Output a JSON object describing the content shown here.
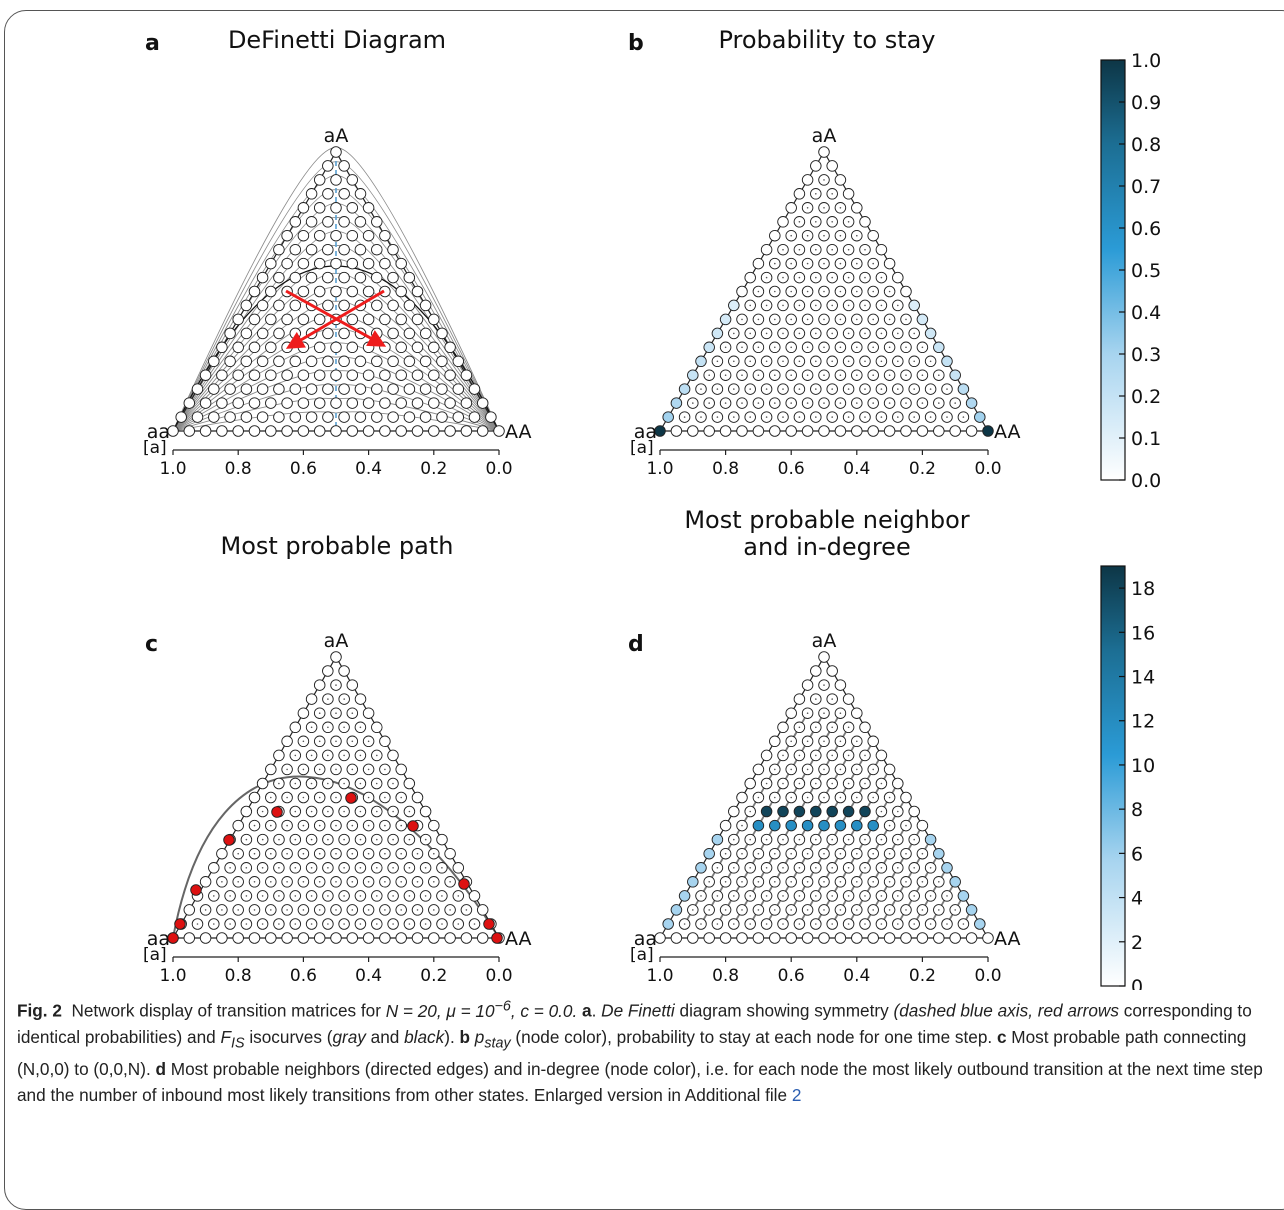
{
  "figure": {
    "panels": [
      {
        "letter": "a",
        "title": "DeFinetti Diagram"
      },
      {
        "letter": "b",
        "title": "Probability to stay"
      },
      {
        "letter": "c",
        "title": "Most probable path"
      },
      {
        "letter": "d",
        "title_line1": "Most probable neighbor",
        "title_line2": "and in-degree"
      }
    ],
    "vertex_labels": {
      "top": "aA",
      "left": "aa",
      "right": "AA",
      "axis_unit": "[a]"
    },
    "x_ticks": [
      "1.0",
      "0.8",
      "0.6",
      "0.4",
      "0.2",
      "0.0"
    ],
    "colorbar_b": {
      "ticks": [
        "1.0",
        "0.9",
        "0.8",
        "0.7",
        "0.6",
        "0.5",
        "0.4",
        "0.3",
        "0.2",
        "0.1",
        "0.0"
      ],
      "range": [
        0,
        1
      ]
    },
    "colorbar_d": {
      "ticks": [
        "18",
        "16",
        "14",
        "12",
        "10",
        "8",
        "6",
        "4",
        "2",
        "0"
      ],
      "range": [
        0,
        19
      ]
    },
    "colors": {
      "node_fill": "#ffffff",
      "node_stroke": "#222222",
      "red_arrow": "#ee1c1c",
      "path_node": "#dd1111",
      "symmetry_axis": "#5aa0d0",
      "cmap_light": "#ffffff",
      "cmap_mid": "#2b9bd6",
      "cmap_dark": "#0d3646",
      "isocurve_gray": "#8a8a8a",
      "edge_gray": "#7a7a7a"
    }
  },
  "caption": {
    "fig_label": "Fig. 2",
    "p1": "Network display of transition matrices for ",
    "math1": "N = 20, μ = 10",
    "math1_exp": "−6",
    "math1_tail": ", c = 0.0.",
    "a_letter": "a",
    "a_text_it": "De Finetti",
    "a_text": " diagram showing symmetry ",
    "a_text_it2": "(dashed blue axis",
    "a_text_it3": ", red arrows",
    "line2": "corresponding to identical probabilities) and ",
    "fis": "F",
    "fis_sub": "IS",
    "line2b": " isocurves (",
    "gray": "gray",
    "and": " and ",
    "black": "black",
    "line2c": "). ",
    "b_letter": "b",
    "pstay": "p",
    "pstay_sub": "stay",
    "b_text": " (node color), probability to stay at each node for one time step.",
    "c_letter": "c",
    "c_text": " Most probable path connecting (N,0,0) to (0,0,N). ",
    "d_letter": "d",
    "d_text": " Most probable neighbors (directed edges) and in-degree (node color), i.e. for each node the most likely outbound transition at the next time step and the number of inbound most likely transitions from other states. Enlarged version in Additional file ",
    "file_link": "2"
  }
}
